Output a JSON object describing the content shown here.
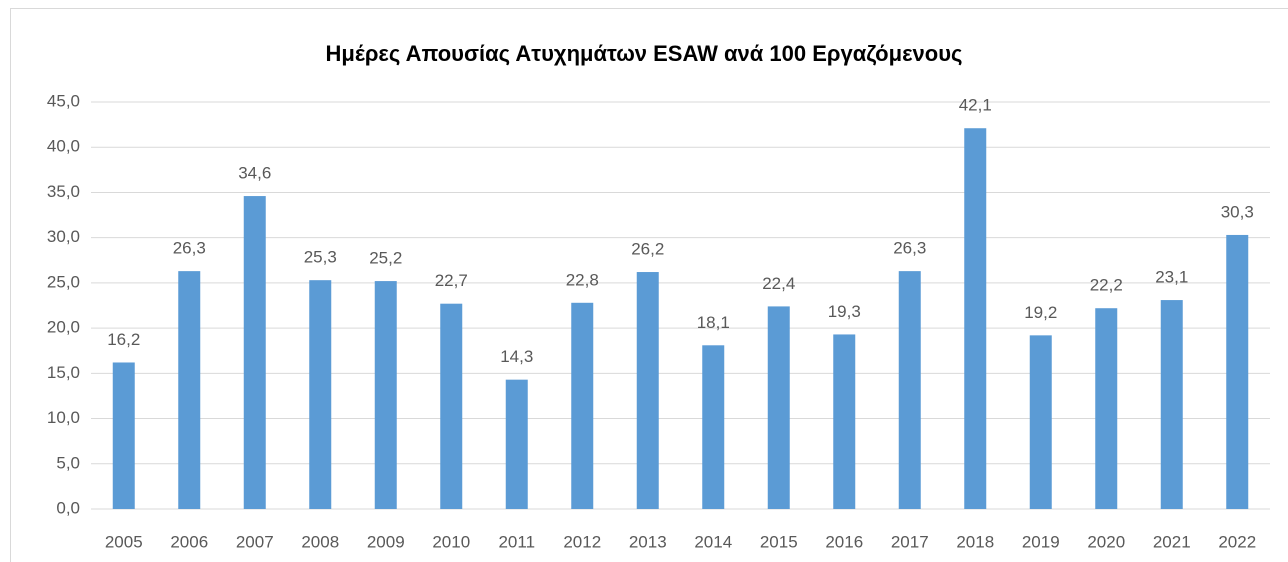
{
  "chart_data": {
    "type": "bar",
    "title": "Ημέρες Απουσίας Ατυχημάτων ESAW ανά 100 Εργαζόμενους",
    "categories": [
      "2005",
      "2006",
      "2007",
      "2008",
      "2009",
      "2010",
      "2011",
      "2012",
      "2013",
      "2014",
      "2015",
      "2016",
      "2017",
      "2018",
      "2019",
      "2020",
      "2021",
      "2022"
    ],
    "values": [
      16.2,
      26.3,
      34.6,
      25.3,
      25.2,
      22.7,
      14.3,
      22.8,
      26.2,
      18.1,
      22.4,
      19.3,
      26.3,
      42.1,
      19.2,
      22.2,
      23.1,
      30.3
    ],
    "value_labels": [
      "16,2",
      "26,3",
      "34,6",
      "25,3",
      "25,2",
      "22,7",
      "14,3",
      "22,8",
      "26,2",
      "18,1",
      "22,4",
      "19,3",
      "26,3",
      "42,1",
      "19,2",
      "22,2",
      "23,1",
      "30,3"
    ],
    "color": "#5b9bd5",
    "ylim": [
      0,
      45
    ],
    "yticks": [
      {
        "value": 0,
        "label": "0,0"
      },
      {
        "value": 5,
        "label": "5,0"
      },
      {
        "value": 10,
        "label": "10,0"
      },
      {
        "value": 15,
        "label": "15,0"
      },
      {
        "value": 20,
        "label": "20,0"
      },
      {
        "value": 25,
        "label": "25,0"
      },
      {
        "value": 30,
        "label": "30,0"
      },
      {
        "value": 35,
        "label": "35,0"
      },
      {
        "value": 40,
        "label": "40,0"
      },
      {
        "value": 45,
        "label": "45,0"
      }
    ],
    "grid": true
  }
}
